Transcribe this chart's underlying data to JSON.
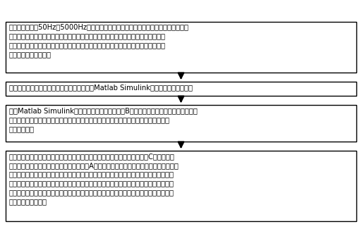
{
  "background_color": "#ffffff",
  "border_color": "#000000",
  "text_color": "#000000",
  "box1_text": "在电力系统工频50Hz到5000Hz的谐波频率范围内，由小到大预先设定一组频率的值，\n计算单芯电力电缆在各频率下的分布参数，分布参数包括芯线的单位长度电阻、芯线\n的单位长度电感、金属护层的单位长度电阻、金属护层的单位长度自感和芯线对金属\n护层的单位长度电容；",
  "box2_text": "根据单芯电力电缆的接地方式和线路长度，在Matlab Simulink软件中做出等效电路；",
  "box3_text": "使用Matlab Simulink的监视器功能模块，在步骤B得到的等效电路中设定监测点，得到\n仿真电路，用以观察特定单芯电力电缆位置的过电压和过电流情况，所述监测点能检测\n电压和电流；",
  "box4_text": "根据实地采集的单芯电力电缆谐波含量数据或自行设定的谐波幅值，在步骤C得到的仿真\n电路上施加激励源，在每个频率下，将步骤A中计算得到的对应的分布参数代入仿真电路，\n并运行仿真电路，采集仿真得到芯线的电压数据、芯线的电流数据、金属护层的电压数据\n和金属护层的电流数据，分别做出芯线的电压或芯线的电流对频率的曲线图以及金属护层\n电压或金属护层电流对频率的曲线图，观察并分析是否出现谐振峰值，若出现了谐振峰值\n的情况，进行记录。",
  "font_size": 7.2,
  "fig_width": 5.13,
  "fig_height": 3.45,
  "dpi": 100
}
